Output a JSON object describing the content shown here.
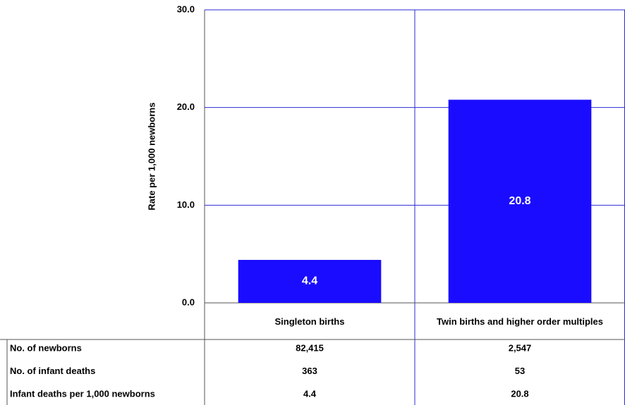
{
  "chart_data": {
    "type": "bar",
    "y_label": "Rate per 1,000 newborns",
    "categories": [
      "Singleton births",
      "Twin births and higher order multiples"
    ],
    "values": [
      4.4,
      20.8
    ],
    "color": "#1a0dff",
    "ylim": [
      0,
      30
    ],
    "yticks": [
      {
        "value": 0,
        "label": "0.0"
      },
      {
        "value": 10,
        "label": "10.0"
      },
      {
        "value": 20,
        "label": "20.0"
      },
      {
        "value": 30,
        "label": "30.0"
      }
    ],
    "grid": true,
    "grid_color": "#2b2bd6",
    "data_table": {
      "rows": [
        {
          "label": "No. of newborns",
          "cells": [
            "82,415",
            "2,547"
          ]
        },
        {
          "label": "No. of infant deaths",
          "cells": [
            "363",
            "53"
          ]
        },
        {
          "label": "Infant deaths per  1,000 newborns",
          "cells": [
            "4.4",
            "20.8"
          ]
        }
      ]
    }
  }
}
